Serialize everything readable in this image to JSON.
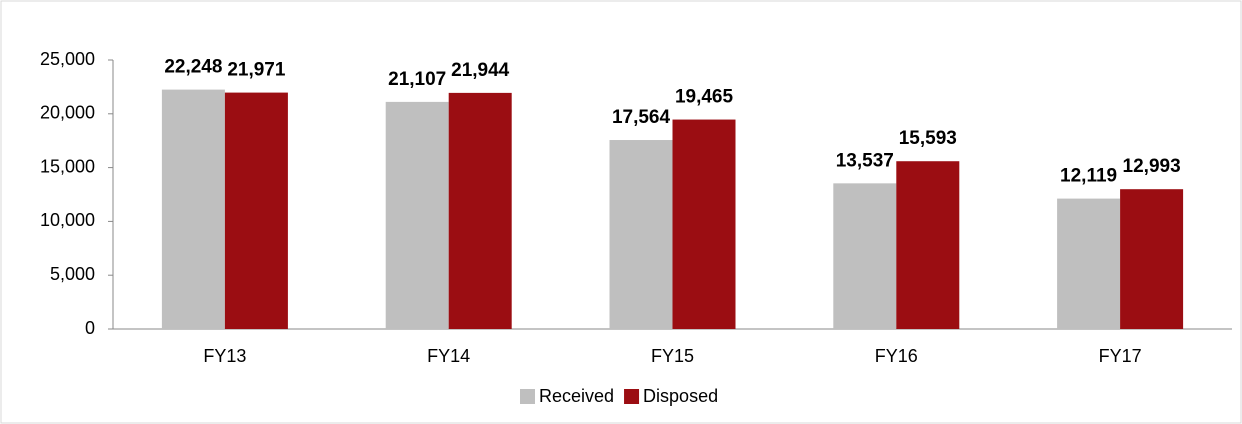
{
  "chart_data": {
    "type": "bar",
    "categories": [
      "FY13",
      "FY14",
      "FY15",
      "FY16",
      "FY17"
    ],
    "series": [
      {
        "name": "Received",
        "color": "#bfbfbf",
        "values": [
          22248,
          21107,
          17564,
          13537,
          12119
        ],
        "value_labels": [
          "22,248",
          "21,107",
          "17,564",
          "13,537",
          "12,119"
        ]
      },
      {
        "name": "Disposed",
        "color": "#9b0d12",
        "values": [
          21971,
          21944,
          19465,
          15593,
          12993
        ],
        "value_labels": [
          "21,971",
          "21,944",
          "19,465",
          "15,593",
          "12,993"
        ]
      }
    ],
    "ylim": [
      0,
      25000
    ],
    "yticks": [
      0,
      {
        "value": 5000,
        "label": "5,000"
      },
      {
        "value": 10000,
        "label": "10,000"
      },
      {
        "value": 15000,
        "label": "15,000"
      },
      {
        "value": 20000,
        "label": "20,000"
      },
      {
        "value": 25000,
        "label": "25,000"
      }
    ],
    "grid": false,
    "legend": "bottom"
  }
}
